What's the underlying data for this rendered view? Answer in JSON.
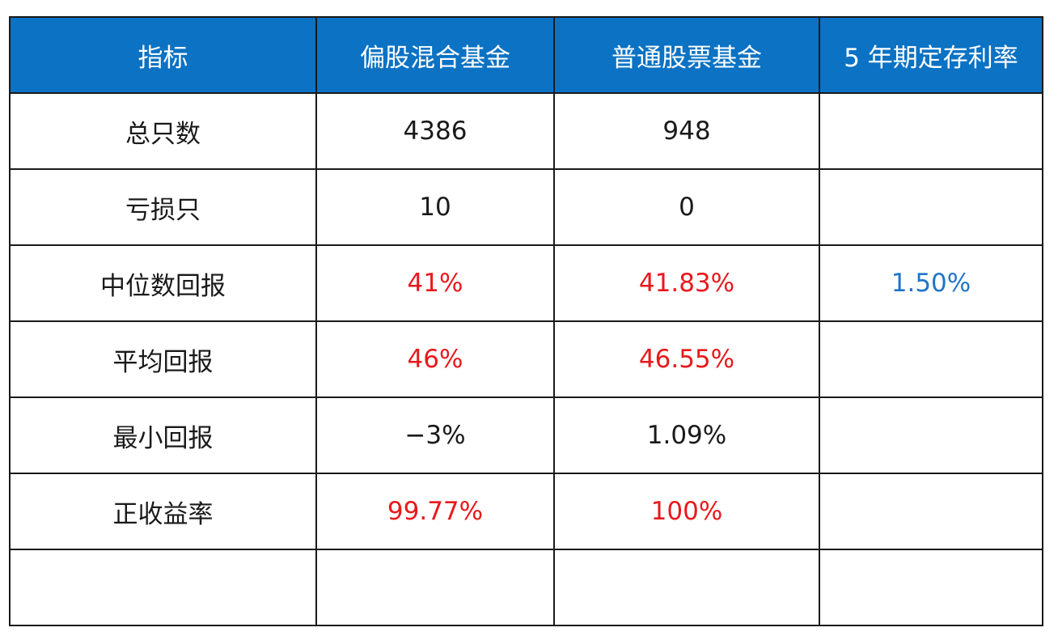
{
  "colors": {
    "header_bg": "#0b72c4",
    "header_text": "#ffffff",
    "highlight_red": "#e8191c",
    "highlight_blue": "#1f75c8"
  },
  "table": {
    "headers": [
      "指标",
      "偏股混合基金",
      "普通股票基金",
      "5 年期定存利率"
    ],
    "rows": [
      [
        "总只数",
        "4386",
        "948",
        ""
      ],
      [
        "亏损只",
        "10",
        "0",
        ""
      ],
      [
        "中位数回报",
        "41%",
        "41.83%",
        "1.50%"
      ],
      [
        "平均回报",
        "46%",
        "46.55%",
        ""
      ],
      [
        "最小回报",
        "−3%",
        "1.09%",
        ""
      ],
      [
        "正收益率",
        "99.77%",
        "100%",
        ""
      ],
      [
        "",
        "",
        "",
        ""
      ]
    ]
  }
}
